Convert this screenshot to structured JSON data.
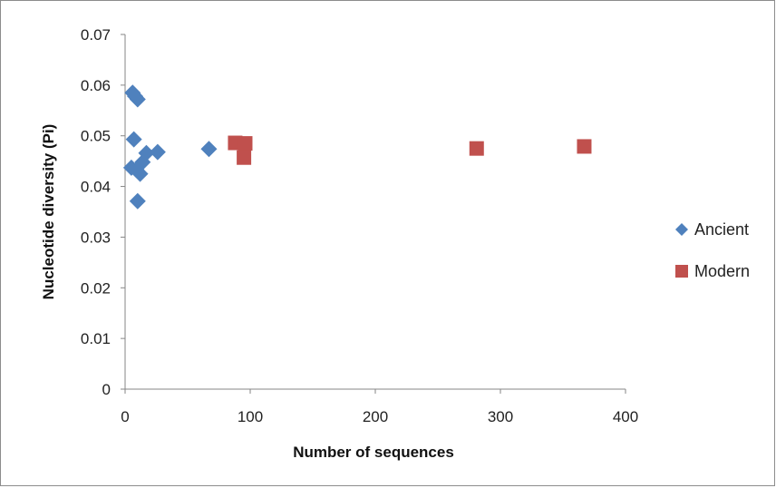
{
  "chart_data": {
    "type": "scatter",
    "title": "",
    "xlabel": "Number of sequences",
    "ylabel": "Nucleotide diversity (Pi)",
    "xlim": [
      0,
      400
    ],
    "ylim": [
      0,
      0.07
    ],
    "x_ticks": [
      0,
      100,
      200,
      300,
      400
    ],
    "y_ticks": [
      0,
      0.01,
      0.02,
      0.03,
      0.04,
      0.05,
      0.06,
      0.07
    ],
    "x_tick_labels": [
      "0",
      "100",
      "200",
      "300",
      "400"
    ],
    "y_tick_labels": [
      "0",
      "0.01",
      "0.02",
      "0.03",
      "0.04",
      "0.05",
      "0.06",
      "0.07"
    ],
    "grid": false,
    "legend_position": "right",
    "series": [
      {
        "name": "Ancient",
        "marker": "diamond",
        "color": "#4f81bd",
        "points": [
          {
            "x": 6,
            "y": 0.0585
          },
          {
            "x": 8,
            "y": 0.0578
          },
          {
            "x": 10,
            "y": 0.0572
          },
          {
            "x": 7,
            "y": 0.0493
          },
          {
            "x": 5,
            "y": 0.0437
          },
          {
            "x": 9,
            "y": 0.0433
          },
          {
            "x": 12,
            "y": 0.0425
          },
          {
            "x": 14,
            "y": 0.0448
          },
          {
            "x": 17,
            "y": 0.0466
          },
          {
            "x": 26,
            "y": 0.0468
          },
          {
            "x": 10,
            "y": 0.0371
          },
          {
            "x": 67,
            "y": 0.0474
          }
        ]
      },
      {
        "name": "Modern",
        "marker": "square",
        "color": "#c0504d",
        "points": [
          {
            "x": 88,
            "y": 0.0486
          },
          {
            "x": 96,
            "y": 0.0485
          },
          {
            "x": 95,
            "y": 0.0457
          },
          {
            "x": 281,
            "y": 0.0475
          },
          {
            "x": 367,
            "y": 0.0479
          }
        ]
      }
    ]
  }
}
